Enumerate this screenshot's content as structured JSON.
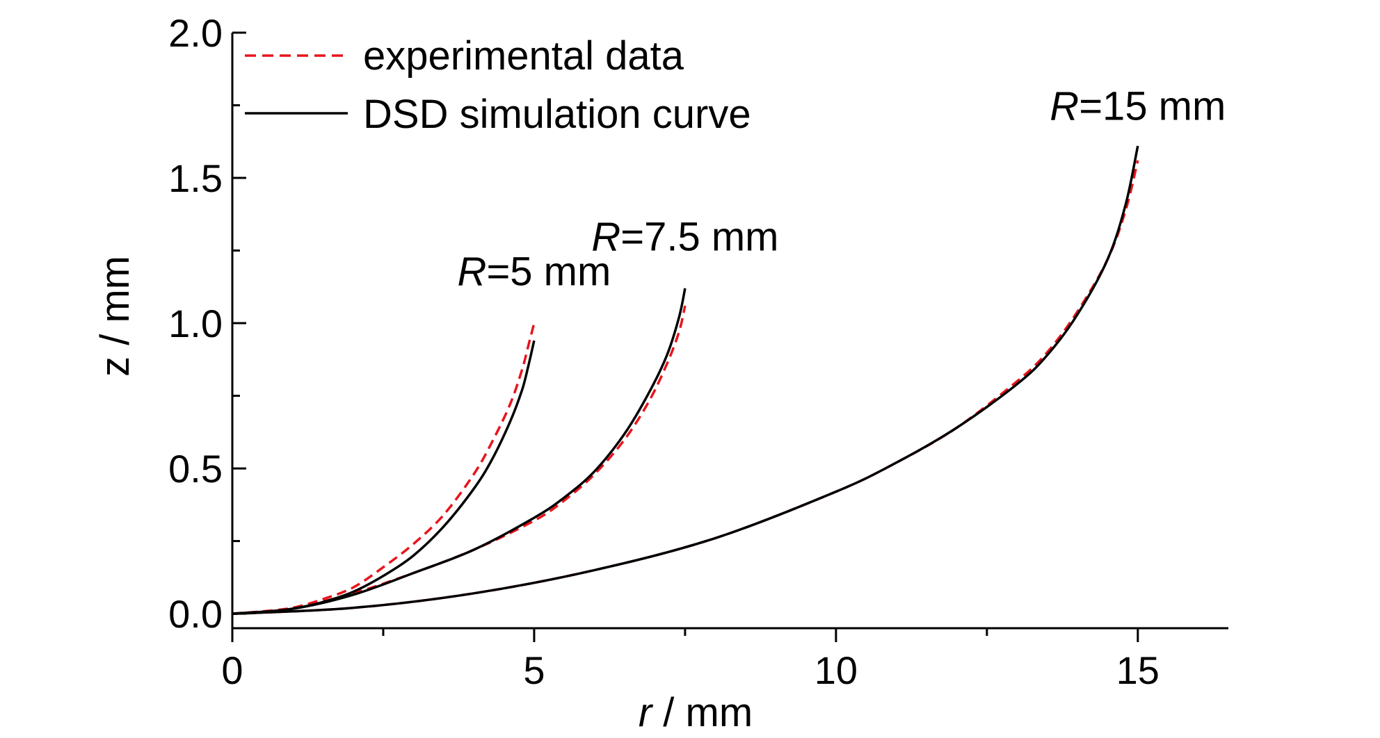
{
  "chart_data": {
    "type": "line",
    "xlabel": {
      "var": "r",
      "unit": " / mm"
    },
    "ylabel": "z / mm",
    "xlim": [
      0,
      16.5
    ],
    "ylim": [
      -0.05,
      2.0
    ],
    "xticks": [
      0,
      5,
      10,
      15
    ],
    "xtick_labels": [
      "0",
      "5",
      "10",
      "15"
    ],
    "yticks": [
      0.0,
      0.5,
      1.0,
      1.5,
      2.0
    ],
    "ytick_labels": [
      "0.0",
      "0.5",
      "1.0",
      "1.5",
      "2.0"
    ],
    "legend": {
      "position": "top-left",
      "entries": [
        {
          "label": "experimental data",
          "style": "dashed",
          "color": "#e8141c"
        },
        {
          "label": "DSD simulation curve",
          "style": "solid",
          "color": "#000000"
        }
      ]
    },
    "annotations": [
      {
        "var": "R",
        "text": "=5 mm",
        "x": 5.0,
        "y": 1.13
      },
      {
        "var": "R",
        "text": "=7.5 mm",
        "x": 7.5,
        "y": 1.25
      },
      {
        "var": "R",
        "text": "=15 mm",
        "x": 15.0,
        "y": 1.7
      }
    ],
    "series": [
      {
        "name": "experimental data",
        "group": "R=5 mm",
        "style": "dashed",
        "color": "#e8141c",
        "x": [
          0,
          0.5,
          1.0,
          1.5,
          2.0,
          2.5,
          3.0,
          3.5,
          4.0,
          4.3,
          4.6,
          4.8,
          4.9,
          5.0
        ],
        "y": [
          0,
          0.005,
          0.02,
          0.05,
          0.09,
          0.16,
          0.24,
          0.34,
          0.48,
          0.59,
          0.72,
          0.84,
          0.92,
          1.0
        ]
      },
      {
        "name": "DSD simulation curve",
        "group": "R=5 mm",
        "style": "solid",
        "color": "#000000",
        "x": [
          0,
          0.5,
          1.0,
          1.5,
          2.0,
          2.5,
          3.0,
          3.5,
          4.0,
          4.3,
          4.6,
          4.8,
          4.9,
          5.0
        ],
        "y": [
          0,
          0.004,
          0.017,
          0.04,
          0.075,
          0.13,
          0.2,
          0.3,
          0.43,
          0.53,
          0.66,
          0.77,
          0.85,
          0.94
        ]
      },
      {
        "name": "experimental data",
        "group": "R=7.5 mm",
        "style": "dashed",
        "color": "#e8141c",
        "x": [
          0,
          1.0,
          2.0,
          3.0,
          4.0,
          5.0,
          5.5,
          6.0,
          6.5,
          6.9,
          7.2,
          7.4,
          7.5
        ],
        "y": [
          0,
          0.02,
          0.07,
          0.14,
          0.22,
          0.32,
          0.39,
          0.48,
          0.6,
          0.73,
          0.86,
          0.97,
          1.06
        ]
      },
      {
        "name": "DSD simulation curve",
        "group": "R=7.5 mm",
        "style": "solid",
        "color": "#000000",
        "x": [
          0,
          1.0,
          2.0,
          3.0,
          4.0,
          5.0,
          5.5,
          6.0,
          6.5,
          6.9,
          7.2,
          7.4,
          7.5
        ],
        "y": [
          0,
          0.017,
          0.065,
          0.14,
          0.22,
          0.33,
          0.4,
          0.49,
          0.62,
          0.76,
          0.89,
          1.02,
          1.12
        ]
      },
      {
        "name": "experimental data",
        "group": "R=15 mm",
        "style": "dashed",
        "color": "#e8141c",
        "x": [
          0,
          2,
          4,
          6,
          8,
          10,
          11,
          12,
          13,
          13.5,
          14,
          14.5,
          14.8,
          15.0
        ],
        "y": [
          0,
          0.02,
          0.07,
          0.15,
          0.26,
          0.42,
          0.52,
          0.64,
          0.8,
          0.9,
          1.04,
          1.22,
          1.39,
          1.56
        ]
      },
      {
        "name": "DSD simulation curve",
        "group": "R=15 mm",
        "style": "solid",
        "color": "#000000",
        "x": [
          0,
          2,
          4,
          6,
          8,
          10,
          11,
          12,
          13,
          13.5,
          14,
          14.5,
          14.8,
          15.0
        ],
        "y": [
          0,
          0.02,
          0.07,
          0.15,
          0.26,
          0.42,
          0.52,
          0.64,
          0.79,
          0.89,
          1.03,
          1.22,
          1.41,
          1.61
        ]
      }
    ]
  }
}
